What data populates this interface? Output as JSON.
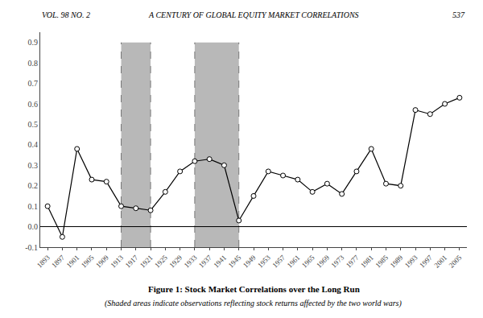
{
  "chart_data": {
    "type": "line",
    "title": "Figure 1: Stock Market Correlations over the Long Run",
    "subtitle": "(Shaded areas indicate observations reflecting stock returns affected by the two world wars)",
    "annotations": [
      "VOL. 98 NO. 2",
      "A CENTURY OF GLOBAL EQUITY MARKET CORRELATIONS",
      "537"
    ],
    "x": [
      1893,
      1897,
      1901,
      1905,
      1909,
      1913,
      1917,
      1921,
      1925,
      1929,
      1933,
      1937,
      1941,
      1945,
      1949,
      1953,
      1957,
      1961,
      1965,
      1969,
      1973,
      1977,
      1981,
      1985,
      1989,
      1993,
      1997,
      2001,
      2005
    ],
    "values": [
      0.1,
      -0.05,
      0.38,
      0.23,
      0.22,
      0.1,
      0.09,
      0.08,
      0.17,
      0.27,
      0.32,
      0.33,
      0.3,
      0.03,
      0.15,
      0.27,
      0.25,
      0.23,
      0.17,
      0.21,
      0.16,
      0.27,
      0.38,
      0.21,
      0.2,
      0.57,
      0.55,
      0.6,
      0.63
    ],
    "color": "#000000",
    "marker": "circle",
    "marker_color": "#ffffff",
    "line_style": "solid",
    "shaded_regions": [
      [
        1913,
        1921
      ],
      [
        1933,
        1945
      ]
    ],
    "shade_top": 0.9,
    "shade_color": "#b8b8b8",
    "xlim": [
      1891,
      2007
    ],
    "xticks": [
      1893,
      1897,
      1901,
      1905,
      1909,
      1913,
      1917,
      1921,
      1925,
      1929,
      1933,
      1937,
      1941,
      1945,
      1949,
      1953,
      1957,
      1961,
      1965,
      1969,
      1973,
      1977,
      1981,
      1985,
      1989,
      1993,
      1997,
      2001,
      2005
    ],
    "ylim": [
      -0.1,
      0.95
    ],
    "yticks": [
      -0.1,
      {
        "value": 0.0,
        "label": "0.0"
      },
      0.1,
      0.2,
      0.3,
      0.4,
      0.5,
      0.6,
      0.7,
      0.8,
      0.9
    ],
    "grid": false
  }
}
